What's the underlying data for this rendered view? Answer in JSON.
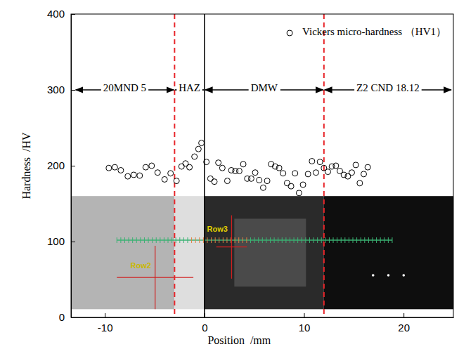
{
  "chart_data": {
    "type": "scatter",
    "x_label": "Position  /mm",
    "y_label": "Hardness  /HV",
    "xlim": [
      -13.4,
      25
    ],
    "ylim": [
      0,
      400
    ],
    "xticks": [
      -10,
      0,
      10,
      20
    ],
    "yticks": [
      0,
      100,
      200,
      300,
      400
    ],
    "legend": "upper right",
    "series": [
      {
        "name": "Vickers micro-hardness （HV1）",
        "marker": "circle",
        "color": "#000000",
        "x": [
          -9.6,
          -9.0,
          -8.4,
          -7.7,
          -7.1,
          -6.5,
          -5.9,
          -5.3,
          -4.7,
          -4.0,
          -3.4,
          -2.8,
          -2.3,
          -1.9,
          -1.5,
          -1.0,
          -0.6,
          -0.3,
          0.2,
          0.6,
          1.0,
          1.4,
          1.8,
          2.3,
          2.7,
          3.1,
          3.5,
          3.9,
          4.3,
          4.7,
          5.1,
          5.5,
          5.9,
          6.3,
          6.7,
          7.1,
          7.5,
          7.9,
          8.3,
          8.7,
          9.1,
          9.5,
          9.9,
          10.4,
          10.8,
          11.2,
          11.6,
          12.0,
          12.4,
          12.8,
          13.2,
          13.6,
          14.0,
          14.4,
          14.8,
          15.2,
          15.6,
          16.0,
          16.4
        ],
        "values": [
          197,
          198,
          194,
          186,
          188,
          187,
          198,
          200,
          191,
          182,
          190,
          180,
          199,
          203,
          198,
          212,
          222,
          230,
          205,
          183,
          179,
          204,
          197,
          180,
          194,
          193,
          193,
          202,
          183,
          183,
          191,
          181,
          171,
          180,
          202,
          199,
          197,
          190,
          177,
          173,
          190,
          164,
          175,
          189,
          206,
          191,
          205,
          197,
          192,
          199,
          200,
          193,
          188,
          186,
          191,
          201,
          177,
          189,
          198
        ]
      }
    ],
    "boundaries": [
      {
        "x": -3,
        "color": "#e8262b",
        "line_style": "dashed"
      },
      {
        "x": 0,
        "color": "#000000",
        "line_style": "solid"
      },
      {
        "x": 12,
        "color": "#e8262b",
        "line_style": "dashed"
      }
    ],
    "region_y": 300,
    "regions": [
      {
        "label": "20MND 5",
        "from": -13,
        "to": -3
      },
      {
        "label": "HAZ",
        "from": -3,
        "to": 0
      },
      {
        "label": "DMW",
        "from": 0,
        "to": 12
      },
      {
        "label": "Z2 CND 18.12",
        "from": 12,
        "to": 25
      }
    ],
    "annotations": [
      {
        "text": "Row2",
        "x": -6.4,
        "y": 65,
        "color": "#c9b800"
      },
      {
        "text": "Row3",
        "x": 1.3,
        "y": 113,
        "color": "#e0d000"
      }
    ]
  }
}
